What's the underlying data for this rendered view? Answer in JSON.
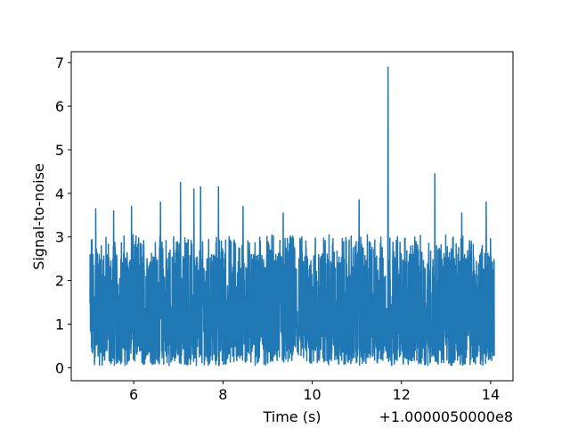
{
  "chart_data": {
    "type": "line",
    "title": "",
    "xlabel": "Time (s)",
    "ylabel": "Signal-to-noise",
    "x_offset_label": "+1.0000050000e8",
    "xlim": [
      4.6,
      14.5
    ],
    "ylim": [
      -0.3,
      7.25
    ],
    "xticks": [
      6,
      8,
      10,
      12,
      14
    ],
    "xtick_labels": [
      "6",
      "8",
      "10",
      "12",
      "14"
    ],
    "yticks": [
      0,
      1,
      2,
      3,
      4,
      5,
      6,
      7
    ],
    "ytick_labels": [
      "0",
      "1",
      "2",
      "3",
      "4",
      "5",
      "6",
      "7"
    ],
    "grid": false,
    "series": [
      {
        "color": "#1f77b4",
        "x_range": [
          5.02,
          14.08
        ],
        "description_values": {
          "baseline_min": 0.0,
          "typical_max": 3.0
        },
        "peaks": [
          {
            "x": 5.15,
            "y": 3.65
          },
          {
            "x": 5.55,
            "y": 3.6
          },
          {
            "x": 5.95,
            "y": 3.7
          },
          {
            "x": 6.6,
            "y": 3.8
          },
          {
            "x": 7.05,
            "y": 4.25
          },
          {
            "x": 7.35,
            "y": 4.1
          },
          {
            "x": 7.5,
            "y": 4.15
          },
          {
            "x": 7.9,
            "y": 4.15
          },
          {
            "x": 8.45,
            "y": 3.7
          },
          {
            "x": 9.35,
            "y": 3.55
          },
          {
            "x": 11.05,
            "y": 3.85
          },
          {
            "x": 11.7,
            "y": 6.9
          },
          {
            "x": 12.75,
            "y": 4.45
          },
          {
            "x": 13.35,
            "y": 3.55
          },
          {
            "x": 13.9,
            "y": 3.8
          }
        ]
      }
    ]
  }
}
